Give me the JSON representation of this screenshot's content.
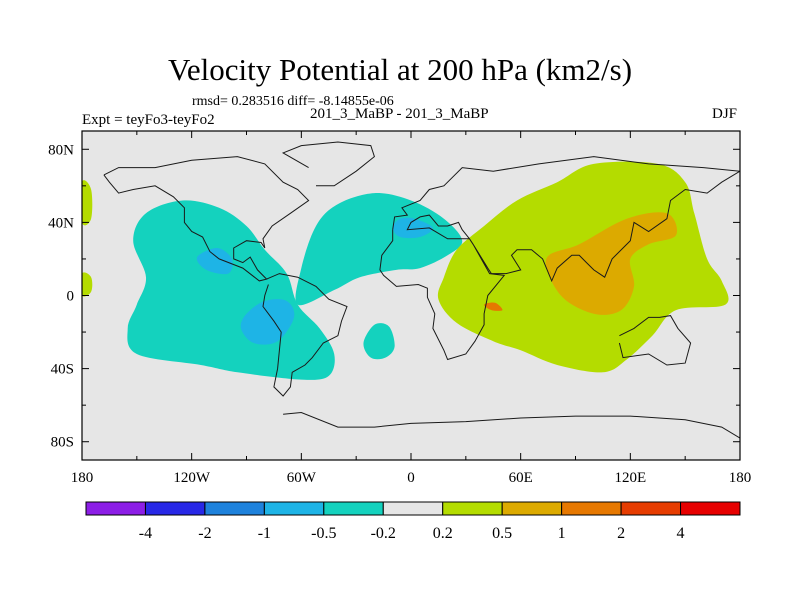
{
  "header": {
    "title": "Velocity Potential at 200 hPa (km2/s)",
    "stats": "rmsd= 0.283516 diff= -8.14855e-06",
    "subtitle": "201_3_MaBP - 201_3_MaBP",
    "expt": "Expt = teyFo3-teyFo2",
    "season": "DJF"
  },
  "chart_data": {
    "type": "heatmap",
    "title": "Velocity Potential at 200 hPa (km2/s)",
    "projection": "cylindrical-equidistant",
    "x_range": [
      -180,
      180
    ],
    "y_range": [
      -90,
      90
    ],
    "x_ticks": [
      {
        "value": -180,
        "label": "180"
      },
      {
        "value": -120,
        "label": "120W"
      },
      {
        "value": -60,
        "label": "60W"
      },
      {
        "value": 0,
        "label": "0"
      },
      {
        "value": 60,
        "label": "60E"
      },
      {
        "value": 120,
        "label": "120E"
      },
      {
        "value": 180,
        "label": "180"
      }
    ],
    "y_ticks": [
      {
        "value": 80,
        "label": "80N"
      },
      {
        "value": 40,
        "label": "40N"
      },
      {
        "value": 0,
        "label": "0"
      },
      {
        "value": -40,
        "label": "40S"
      },
      {
        "value": -80,
        "label": "80S"
      }
    ],
    "colorbar": {
      "boundaries": [
        "-4",
        "-2",
        "-1",
        "-0.5",
        "-0.2",
        "0.2",
        "0.5",
        "1",
        "2",
        "4"
      ],
      "colors": [
        "#8c1ee6",
        "#2828e6",
        "#1e82dc",
        "#1eb4e6",
        "#14d2be",
        "#e6e6e6",
        "#b4dc00",
        "#dcaa00",
        "#e67800",
        "#e63c00",
        "#e60000"
      ]
    },
    "regions": [
      {
        "name": "western-hemisphere-negative",
        "level": "-0.5 to -0.2",
        "color": "#14d2be",
        "outline": [
          [
            -155,
            -18
          ],
          [
            -150,
            -32
          ],
          [
            -115,
            -38
          ],
          [
            -95,
            -42
          ],
          [
            -60,
            -46
          ],
          [
            -45,
            -44
          ],
          [
            -42,
            -32
          ],
          [
            -50,
            -18
          ],
          [
            -62,
            -5
          ],
          [
            -68,
            12
          ],
          [
            -80,
            25
          ],
          [
            -90,
            38
          ],
          [
            -105,
            48
          ],
          [
            -125,
            52
          ],
          [
            -145,
            45
          ],
          [
            -152,
            30
          ],
          [
            -145,
            10
          ],
          [
            -150,
            -5
          ]
        ]
      },
      {
        "name": "atlantic-negative",
        "level": "-0.5 to -0.2",
        "color": "#14d2be",
        "outline": [
          [
            -62,
            -5
          ],
          [
            -60,
            15
          ],
          [
            -52,
            38
          ],
          [
            -40,
            50
          ],
          [
            -20,
            56
          ],
          [
            0,
            52
          ],
          [
            18,
            42
          ],
          [
            28,
            30
          ],
          [
            20,
            22
          ],
          [
            5,
            15
          ],
          [
            -8,
            14
          ],
          [
            -28,
            10
          ],
          [
            -42,
            3
          ]
        ]
      },
      {
        "name": "south-atlantic-negative",
        "level": "-0.5 to -0.2",
        "color": "#14d2be",
        "outline": [
          [
            -26,
            -26
          ],
          [
            -22,
            -34
          ],
          [
            -14,
            -34
          ],
          [
            -9,
            -28
          ],
          [
            -12,
            -17
          ],
          [
            -20,
            -16
          ]
        ]
      },
      {
        "name": "north-pacific-minimum",
        "level": "-1 to -0.5",
        "color": "#1eb4e6",
        "outline": [
          [
            -117,
            21
          ],
          [
            -112,
            14
          ],
          [
            -100,
            12
          ],
          [
            -98,
            20
          ],
          [
            -106,
            26
          ]
        ]
      },
      {
        "name": "south-america-minimum",
        "level": "-1 to -0.5",
        "color": "#1eb4e6",
        "outline": [
          [
            -93,
            -18
          ],
          [
            -86,
            -26
          ],
          [
            -73,
            -25
          ],
          [
            -64,
            -12
          ],
          [
            -68,
            -3
          ],
          [
            -80,
            -3
          ],
          [
            -90,
            -10
          ]
        ]
      },
      {
        "name": "north-atlantic-minimum",
        "level": "-1 to -0.5",
        "color": "#1eb4e6",
        "outline": [
          [
            -10,
            37
          ],
          [
            -6,
            32
          ],
          [
            5,
            32
          ],
          [
            12,
            37
          ],
          [
            2,
            42
          ],
          [
            -6,
            42
          ]
        ]
      },
      {
        "name": "eastern-hemisphere-positive",
        "level": "0.2 to 0.5",
        "color": "#b4dc00",
        "outline": [
          [
            18,
            10
          ],
          [
            15,
            -2
          ],
          [
            25,
            -15
          ],
          [
            45,
            -25
          ],
          [
            60,
            -30
          ],
          [
            80,
            -38
          ],
          [
            105,
            -42
          ],
          [
            118,
            -35
          ],
          [
            132,
            -22
          ],
          [
            145,
            -8
          ],
          [
            172,
            -5
          ],
          [
            170,
            8
          ],
          [
            162,
            20
          ],
          [
            155,
            45
          ],
          [
            150,
            62
          ],
          [
            135,
            72
          ],
          [
            100,
            72
          ],
          [
            80,
            62
          ],
          [
            58,
            52
          ],
          [
            40,
            38
          ],
          [
            25,
            25
          ]
        ]
      },
      {
        "name": "dateline-positive-north",
        "level": "0.2 to 0.5",
        "color": "#b4dc00",
        "outline": [
          [
            -180,
            62
          ],
          [
            -175,
            58
          ],
          [
            -175,
            42
          ],
          [
            -180,
            40
          ]
        ]
      },
      {
        "name": "dateline-positive-tropics",
        "level": "0.2 to 0.5",
        "color": "#b4dc00",
        "outline": [
          [
            -180,
            12
          ],
          [
            -175,
            10
          ],
          [
            -175,
            2
          ],
          [
            -180,
            0
          ]
        ]
      },
      {
        "name": "asia-maximum",
        "level": "0.5 to 1",
        "color": "#dcaa00",
        "outline": [
          [
            74,
            20
          ],
          [
            82,
            0
          ],
          [
            100,
            -10
          ],
          [
            115,
            -8
          ],
          [
            122,
            5
          ],
          [
            120,
            20
          ],
          [
            130,
            28
          ],
          [
            145,
            33
          ],
          [
            140,
            45
          ],
          [
            118,
            42
          ],
          [
            92,
            28
          ]
        ]
      },
      {
        "name": "peak-maximum",
        "level": "1 to 2",
        "color": "#e67800",
        "outline": [
          [
            40,
            -5
          ],
          [
            44,
            -8
          ],
          [
            50,
            -8
          ],
          [
            46,
            -4
          ]
        ]
      }
    ]
  }
}
